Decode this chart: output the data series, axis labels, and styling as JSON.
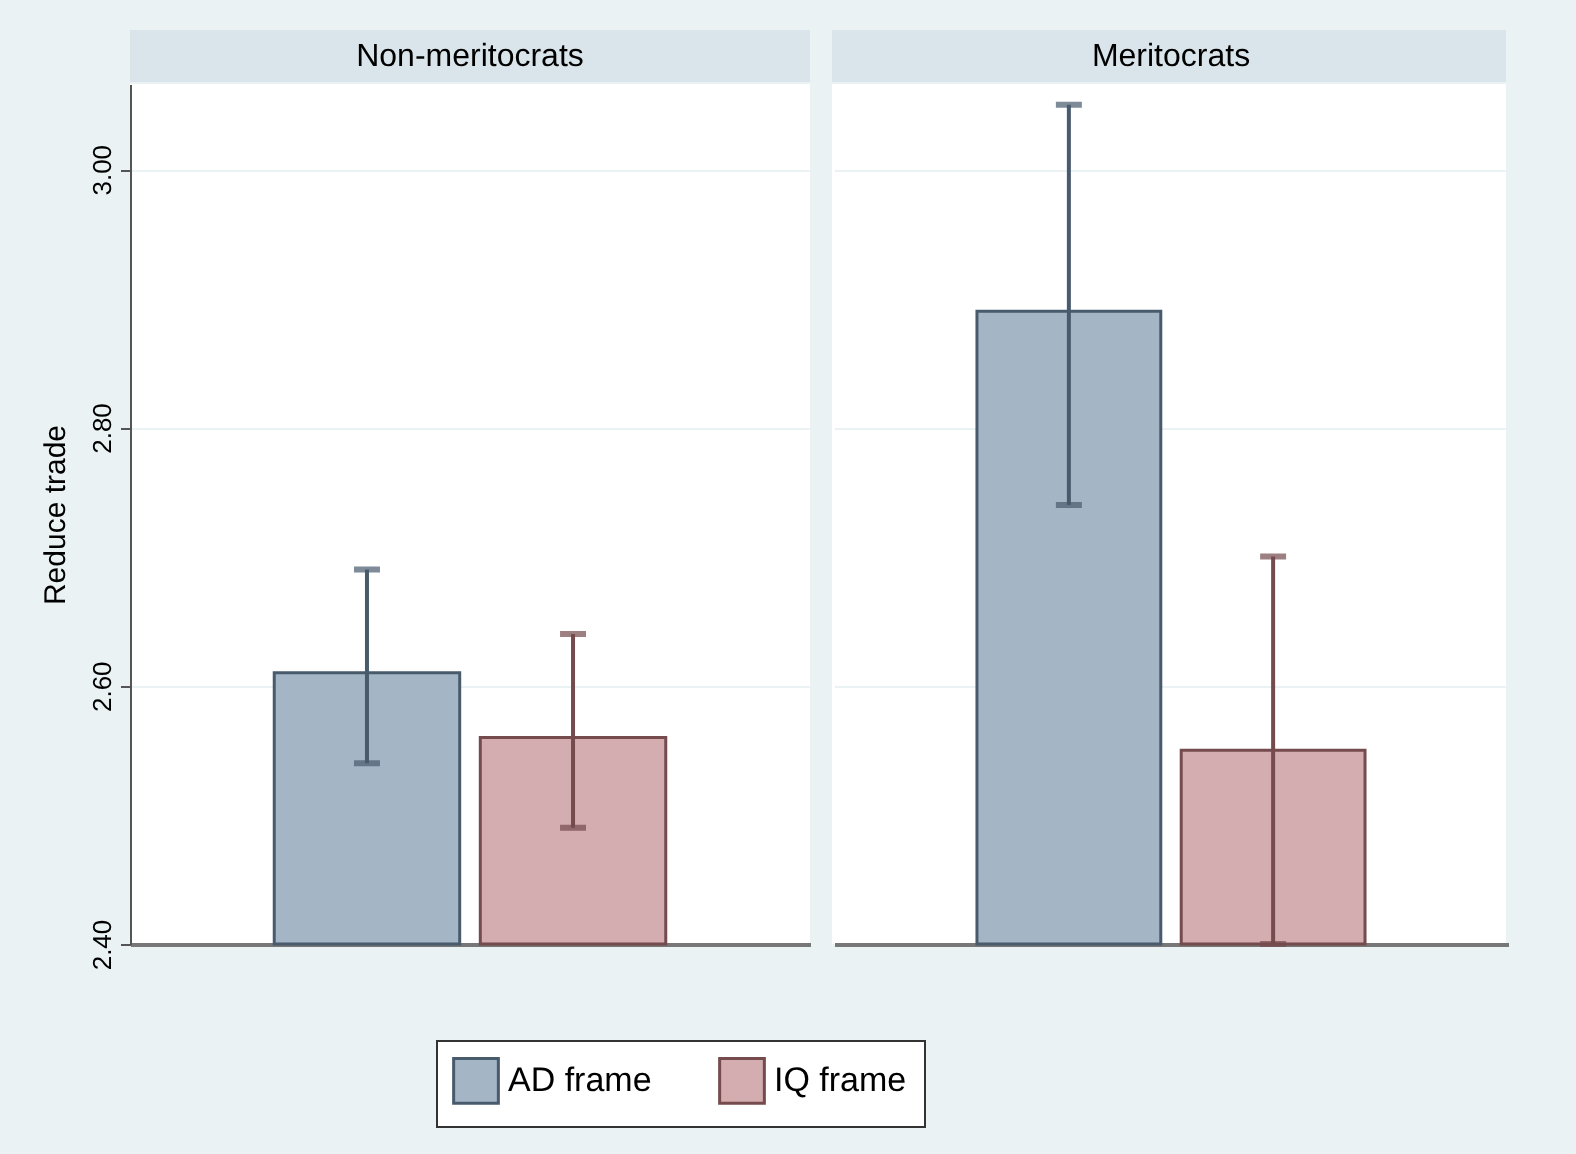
{
  "chart_data": {
    "type": "bar",
    "ylabel": "Reduce trade",
    "categories": [
      "Non-meritocrats",
      "Meritocrats"
    ],
    "series": [
      {
        "name": "AD frame",
        "color": "#a4b5c6",
        "values": [
          2.61,
          2.89
        ],
        "errors": [
          [
            2.54,
            2.69
          ],
          [
            2.74,
            3.05
          ]
        ]
      },
      {
        "name": "IQ frame",
        "color": "#d3adb0",
        "values": [
          2.56,
          2.55
        ],
        "errors": [
          [
            2.49,
            2.64
          ],
          [
            2.4,
            2.7
          ]
        ]
      }
    ],
    "ylim": [
      2.4,
      3.066
    ],
    "yticks": [
      {
        "value": 2.4,
        "label": "2.40"
      },
      {
        "value": 2.6,
        "label": "2.60"
      },
      {
        "value": 2.8,
        "label": "2.80"
      },
      {
        "value": 3.0,
        "label": "3.00"
      }
    ],
    "grid": "y",
    "legend": "bottom"
  }
}
